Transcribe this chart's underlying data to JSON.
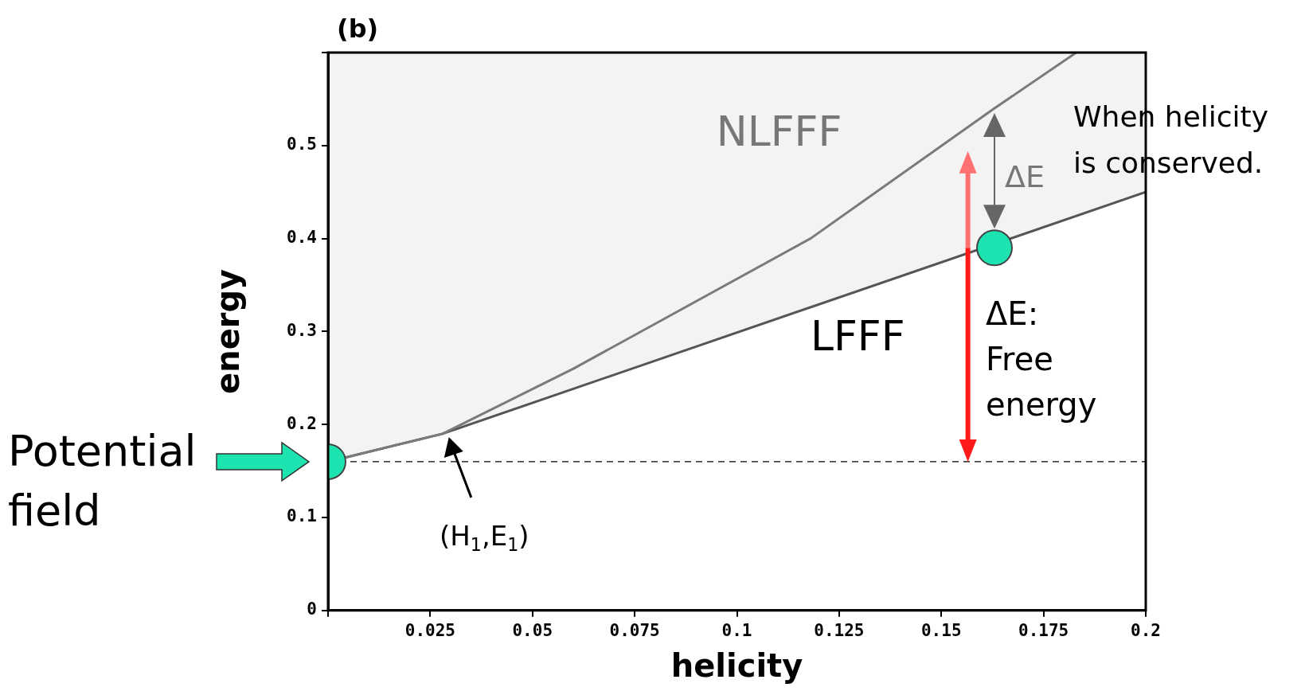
{
  "chart_data": {
    "type": "line",
    "xlabel": "helicity",
    "ylabel": "energy",
    "xlim": [
      0,
      0.2
    ],
    "ylim": [
      0,
      0.6
    ],
    "xticks": [
      {
        "value": 0,
        "label": null
      },
      0.025,
      0.05,
      0.075,
      0.1,
      0.125,
      0.15,
      0.175,
      0.2
    ],
    "yticks": [
      0,
      0.1,
      0.2,
      0.3,
      0.4,
      0.5,
      {
        "value": 0.6,
        "label": null
      }
    ],
    "grid": false,
    "legend": false,
    "series": [
      {
        "name": "NLFFF",
        "type": "line",
        "color": "#7a7a7a",
        "x": [
          0,
          0.028,
          0.06,
          0.118,
          0.163,
          0.183
        ],
        "values": [
          0.16,
          0.19,
          0.26,
          0.4,
          0.54,
          0.6
        ]
      },
      {
        "name": "LFFF",
        "type": "line",
        "color": "#555555",
        "x": [
          0,
          0.028,
          0.2
        ],
        "values": [
          0.16,
          0.19,
          0.45
        ],
        "lower": [
          0.16,
          0.19,
          0.45
        ],
        "upper": [
          0.6,
          0.6,
          0.6
        ]
      },
      {
        "type": "scatter",
        "color": "#1de3b0",
        "marker": "circle",
        "x": [
          0,
          0.163
        ],
        "values": [
          0.16,
          0.39
        ]
      }
    ],
    "ref_lines": [
      {
        "axis": "y",
        "value": 0.16,
        "color": "#000000",
        "line_style": "dashed"
      }
    ],
    "annotations": [
      "(b)",
      "When helicity is conserved.",
      "ΔE",
      "ΔE: Free energy",
      "Potential field",
      "(H$_{1}$,E$_{1}$)"
    ]
  }
}
